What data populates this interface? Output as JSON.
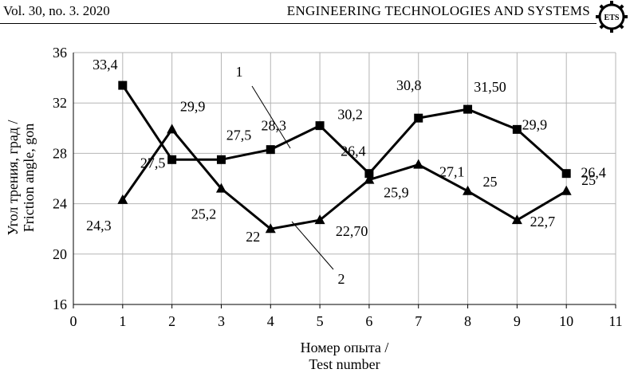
{
  "header": {
    "journal_issue": "Vol. 30, no. 3. 2020",
    "journal_title": "ENGINEERING TECHNOLOGIES AND SYSTEMS",
    "logo_text": "ETS"
  },
  "chart_data": {
    "type": "line",
    "title": "",
    "xlabel_line1": "Номер опыта /",
    "xlabel_line2": "Test number",
    "ylabel_line1": "Угол трения, град /",
    "ylabel_line2": "Friction  angle, gon",
    "xlim": [
      0,
      11
    ],
    "ylim": [
      16,
      36
    ],
    "x_ticks": [
      "0",
      "1",
      "2",
      "3",
      "4",
      "5",
      "6",
      "7",
      "8",
      "9",
      "10",
      "11"
    ],
    "y_ticks": [
      "16",
      "20",
      "24",
      "28",
      "32",
      "36"
    ],
    "grid": true,
    "x": [
      1,
      2,
      3,
      4,
      5,
      6,
      7,
      8,
      9,
      10
    ],
    "series": [
      {
        "name": "1",
        "marker": "square",
        "values": [
          33.4,
          27.5,
          27.5,
          28.3,
          30.2,
          26.4,
          30.8,
          31.5,
          29.9,
          26.4
        ],
        "labels": [
          "33,4",
          "27,5",
          "27,5",
          "28,3",
          "30,2",
          "26,4",
          "30,8",
          "31,50",
          "29,9",
          "26,4"
        ]
      },
      {
        "name": "2",
        "marker": "triangle",
        "values": [
          24.3,
          29.9,
          25.2,
          22.0,
          22.7,
          25.9,
          27.1,
          25.0,
          22.7,
          25.0
        ],
        "labels": [
          "24,3",
          "29,9",
          "25,2",
          "22",
          "22,70",
          "25,9",
          "27,1",
          "25",
          "22,7",
          "25"
        ]
      }
    ],
    "line_color": "#000000",
    "grid_color": "#b5b5b5"
  }
}
